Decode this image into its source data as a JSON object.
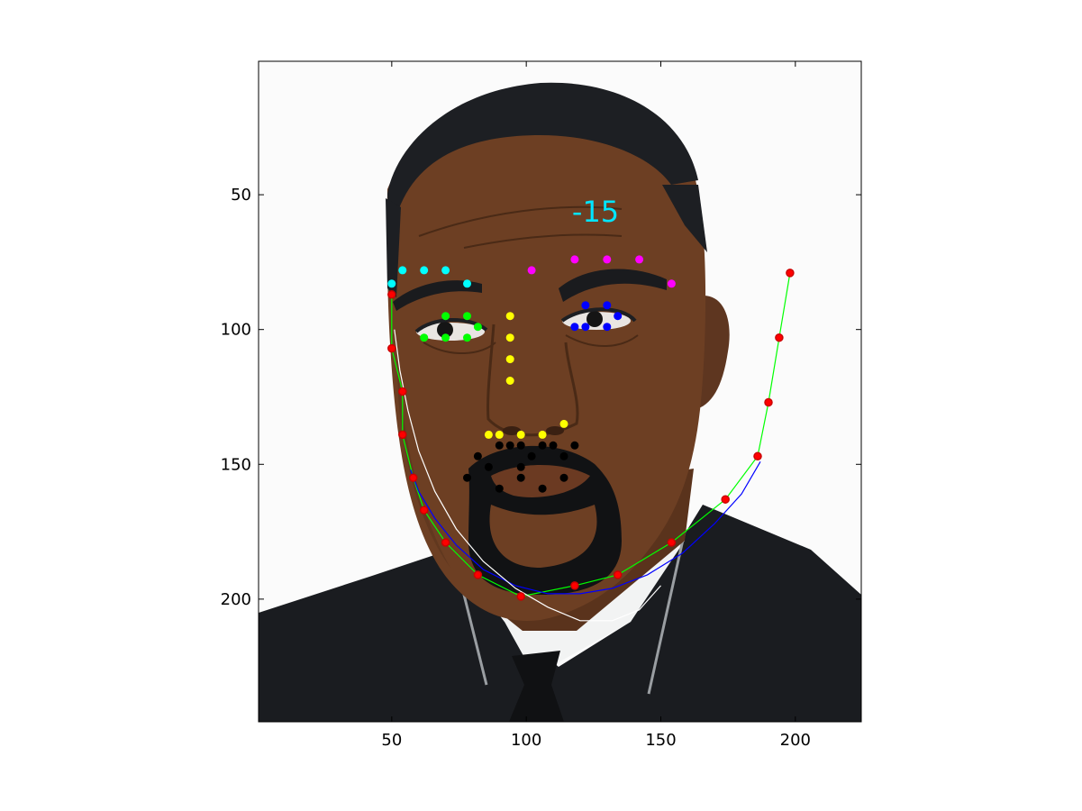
{
  "annotation": {
    "text": "-15",
    "color": "#00e5ff",
    "x": 117,
    "y": 56
  },
  "axes": {
    "xlim": [
      0.5,
      224.5
    ],
    "ylim": [
      0.5,
      245.5
    ],
    "x_reversed": false,
    "y_reversed": true,
    "xticks": [
      50,
      100,
      150,
      200
    ],
    "yticks": [
      50,
      100,
      150,
      200
    ],
    "xtick_labels": [
      "50",
      "100",
      "150",
      "200"
    ],
    "ytick_labels": [
      "50",
      "100",
      "150",
      "200"
    ]
  },
  "colors": {
    "background": "#ffffff",
    "skin": "#6d3f23",
    "skin_shadow": "#4a2a16",
    "hair": "#1d1f23",
    "suit": "#1a1c20",
    "shirt": "#f5f6f6",
    "eyebrow": "#1a1b1e",
    "beard": "#111214",
    "lips": "#5b3220"
  },
  "chart_data": {
    "type": "scatter",
    "title": "",
    "xlabel": "",
    "ylabel": "",
    "series": [
      {
        "color": "#00ffff",
        "marker": "dot",
        "points": [
          [
            50,
            83
          ],
          [
            54,
            78
          ],
          [
            62,
            78
          ],
          [
            70,
            78
          ],
          [
            78,
            83
          ]
        ]
      },
      {
        "color": "#ff00ff",
        "marker": "dot",
        "points": [
          [
            102,
            78
          ],
          [
            118,
            74
          ],
          [
            130,
            74
          ],
          [
            142,
            74
          ],
          [
            154,
            83
          ]
        ]
      },
      {
        "color": "#00ff00",
        "marker": "dot",
        "points": [
          [
            62,
            103
          ],
          [
            70,
            95
          ],
          [
            78,
            95
          ],
          [
            82,
            99
          ],
          [
            78,
            103
          ],
          [
            70,
            103
          ]
        ]
      },
      {
        "color": "#0000ff",
        "marker": "dot",
        "points": [
          [
            118,
            99
          ],
          [
            122,
            91
          ],
          [
            130,
            91
          ],
          [
            134,
            95
          ],
          [
            130,
            99
          ],
          [
            122,
            99
          ]
        ]
      },
      {
        "color": "#ffff00",
        "marker": "dot",
        "points": [
          [
            94,
            95
          ],
          [
            94,
            103
          ],
          [
            94,
            111
          ],
          [
            94,
            119
          ],
          [
            86,
            139
          ],
          [
            90,
            139
          ],
          [
            98,
            139
          ],
          [
            106,
            139
          ],
          [
            114,
            135
          ]
        ]
      },
      {
        "color": "#000000",
        "marker": "dot",
        "points": [
          [
            78,
            155
          ],
          [
            82,
            147
          ],
          [
            86,
            151
          ],
          [
            90,
            143
          ],
          [
            94,
            143
          ],
          [
            98,
            143
          ],
          [
            102,
            147
          ],
          [
            106,
            143
          ],
          [
            110,
            143
          ],
          [
            114,
            147
          ],
          [
            118,
            143
          ],
          [
            114,
            155
          ],
          [
            106,
            159
          ],
          [
            98,
            155
          ],
          [
            90,
            159
          ],
          [
            98,
            151
          ]
        ]
      },
      {
        "color": "#ff0000",
        "marker": "dot-outlined",
        "points": [
          [
            50,
            87
          ],
          [
            50,
            107
          ],
          [
            54,
            123
          ],
          [
            54,
            139
          ],
          [
            58,
            155
          ],
          [
            62,
            167
          ],
          [
            70,
            179
          ],
          [
            82,
            191
          ],
          [
            98,
            199
          ],
          [
            118,
            195
          ],
          [
            134,
            191
          ],
          [
            154,
            179
          ],
          [
            174,
            163
          ],
          [
            186,
            147
          ],
          [
            190,
            127
          ],
          [
            194,
            103
          ],
          [
            198,
            79
          ]
        ]
      }
    ],
    "curves": [
      {
        "color": "#00ff00",
        "points": [
          [
            50,
            87
          ],
          [
            50,
            107
          ],
          [
            54,
            123
          ],
          [
            54,
            139
          ],
          [
            58,
            155
          ],
          [
            62,
            167
          ],
          [
            70,
            179
          ],
          [
            82,
            191
          ],
          [
            98,
            199
          ],
          [
            118,
            195
          ],
          [
            134,
            191
          ],
          [
            154,
            179
          ],
          [
            174,
            163
          ],
          [
            186,
            147
          ],
          [
            190,
            127
          ],
          [
            194,
            103
          ],
          [
            198,
            79
          ]
        ]
      },
      {
        "color": "#0000ff",
        "points": [
          [
            57,
            152
          ],
          [
            60,
            160
          ],
          [
            66,
            170
          ],
          [
            74,
            180
          ],
          [
            84,
            189
          ],
          [
            96,
            195
          ],
          [
            108,
            198
          ],
          [
            120,
            198
          ],
          [
            132,
            196
          ],
          [
            145,
            191
          ],
          [
            158,
            183
          ],
          [
            170,
            172
          ],
          [
            180,
            161
          ],
          [
            187,
            149
          ]
        ]
      },
      {
        "color": "#ffffff",
        "points": [
          [
            51,
            100
          ],
          [
            53,
            115
          ],
          [
            56,
            130
          ],
          [
            60,
            145
          ],
          [
            66,
            160
          ],
          [
            74,
            174
          ],
          [
            84,
            186
          ],
          [
            96,
            196
          ],
          [
            108,
            203
          ],
          [
            120,
            208
          ],
          [
            132,
            208
          ],
          [
            142,
            204
          ],
          [
            150,
            195
          ]
        ]
      }
    ]
  }
}
